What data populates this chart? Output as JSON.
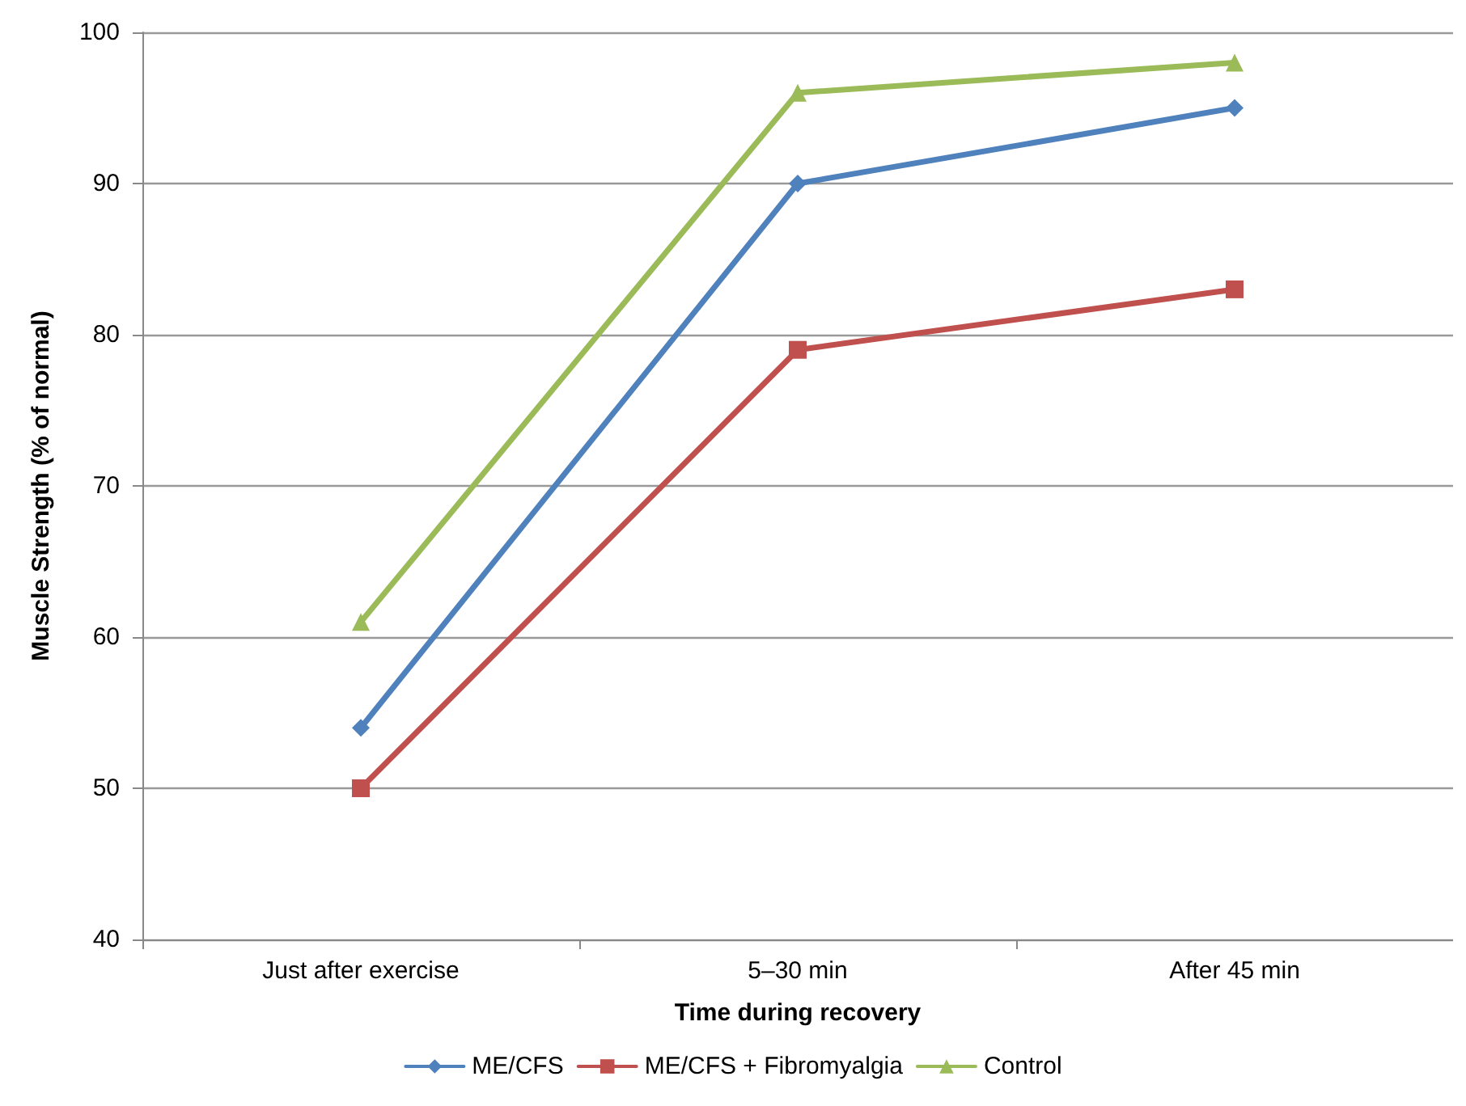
{
  "chart_data": {
    "type": "line",
    "xlabel": "Time during recovery",
    "ylabel": "Muscle Strength (% of normal)",
    "categories": [
      "Just after exercise",
      "5–30 min",
      "After 45 min"
    ],
    "series": [
      {
        "name": "ME/CFS",
        "color": "#4f81bd",
        "marker": "diamond",
        "values": [
          54,
          90,
          95
        ]
      },
      {
        "name": "ME/CFS + Fibromyalgia",
        "color": "#c0504d",
        "marker": "square",
        "values": [
          50,
          79,
          83
        ]
      },
      {
        "name": "Control",
        "color": "#9bbb59",
        "marker": "triangle",
        "values": [
          61,
          96,
          98
        ]
      }
    ],
    "ylim": [
      40,
      100
    ],
    "yticks": [
      40,
      50,
      60,
      70,
      80,
      90,
      100
    ],
    "grid": "y",
    "legend": "bottom",
    "line_style": "solid"
  }
}
